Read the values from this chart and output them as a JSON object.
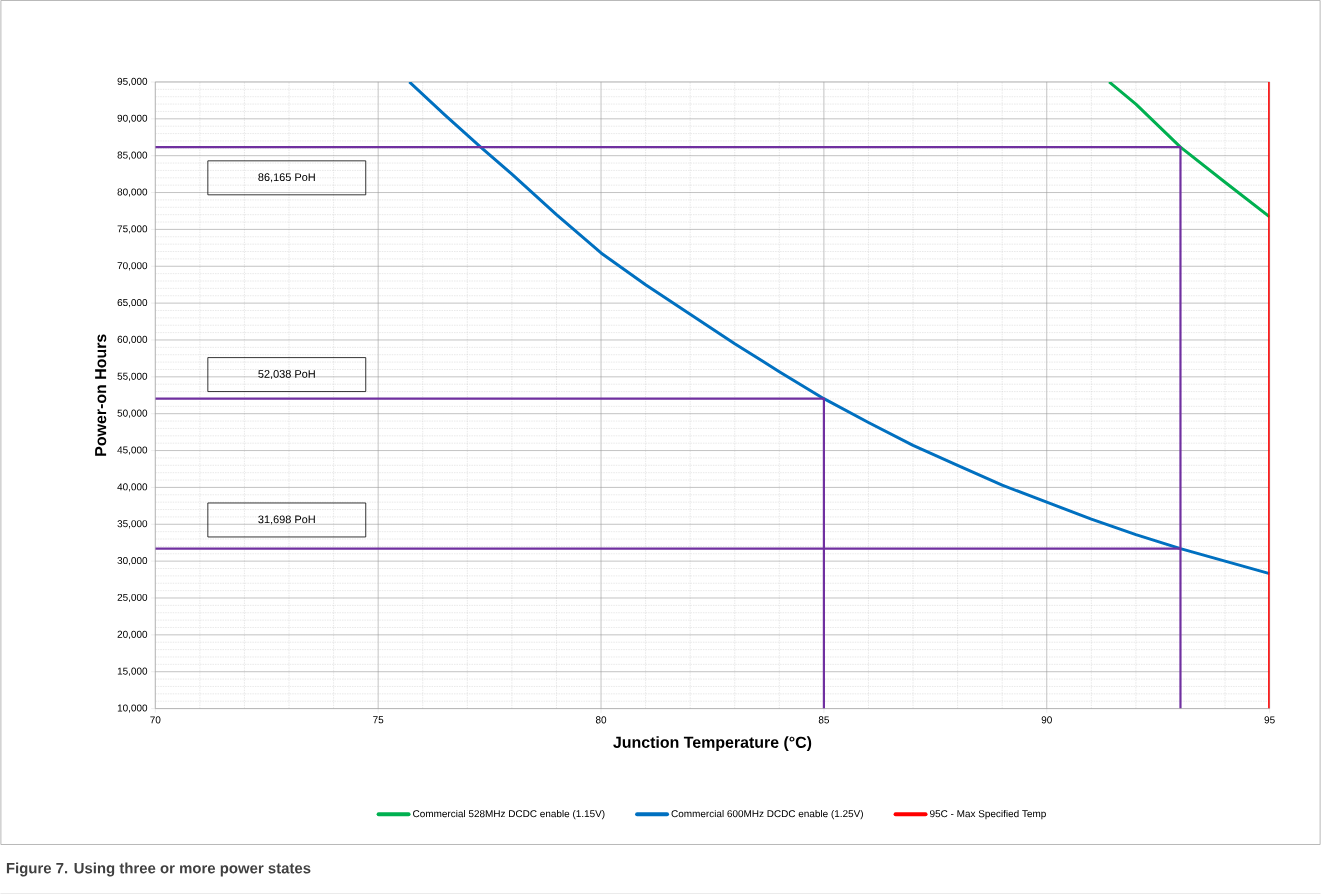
{
  "chart_data": {
    "type": "line",
    "xlabel": "Junction Temperature (°C)",
    "ylabel": "Power-on Hours",
    "xlim": [
      70,
      95
    ],
    "ylim": [
      10000,
      95000
    ],
    "xticks": [
      70,
      75,
      80,
      85,
      90,
      95
    ],
    "yticks": [
      {
        "value": 10000,
        "label": "10,000"
      },
      {
        "value": 15000,
        "label": "15,000"
      },
      {
        "value": 20000,
        "label": "20,000"
      },
      {
        "value": 25000,
        "label": "25,000"
      },
      {
        "value": 30000,
        "label": "30,000"
      },
      {
        "value": 35000,
        "label": "35,000"
      },
      {
        "value": 40000,
        "label": "40,000"
      },
      {
        "value": 45000,
        "label": "45,000"
      },
      {
        "value": 50000,
        "label": "50,000"
      },
      {
        "value": 55000,
        "label": "55,000"
      },
      {
        "value": 60000,
        "label": "60,000"
      },
      {
        "value": 65000,
        "label": "65,000"
      },
      {
        "value": 70000,
        "label": "70,000"
      },
      {
        "value": 75000,
        "label": "75,000"
      },
      {
        "value": 80000,
        "label": "80,000"
      },
      {
        "value": 85000,
        "label": "85,000"
      },
      {
        "value": 90000,
        "label": "90,000"
      },
      {
        "value": 95000,
        "label": "95,000"
      }
    ],
    "grid": true,
    "legend": "bottom",
    "marker": "none",
    "line_style": "solid",
    "series": [
      {
        "name": "Commercial 528MHz DCDC enable (1.15V)",
        "color": "#00b050",
        "x": [
          91.4,
          92,
          93,
          94,
          95
        ],
        "values": [
          95000,
          92000,
          86165,
          81400,
          76700
        ]
      },
      {
        "name": "Commercial 600MHz DCDC enable (1.25V)",
        "color": "#0070c0",
        "x": [
          75.7,
          76.5,
          77.3,
          78,
          79,
          80,
          81,
          82,
          83,
          84,
          85,
          86,
          87,
          88,
          89,
          90,
          91,
          92,
          93,
          94,
          95
        ],
        "values": [
          95000,
          90500,
          86165,
          82500,
          77000,
          71800,
          67500,
          63500,
          59500,
          55700,
          52038,
          48800,
          45700,
          43000,
          40300,
          38000,
          35700,
          33600,
          31698,
          30000,
          28300
        ]
      },
      {
        "name": "95C - Max Specified Temp",
        "color": "#ff0000",
        "x": [
          95,
          95
        ],
        "values": [
          10000,
          95000
        ]
      },
      {
        "color": "#7030a0",
        "x": [
          70,
          93,
          93
        ],
        "values": [
          86165,
          86165,
          10000
        ]
      },
      {
        "color": "#7030a0",
        "x": [
          70,
          85,
          85
        ],
        "values": [
          52038,
          52038,
          10000
        ]
      },
      {
        "color": "#7030a0",
        "x": [
          70,
          93
        ],
        "values": [
          31698,
          31698
        ]
      }
    ],
    "annotations": [
      "86,165 PoH",
      "52,038 PoH",
      "31,698 PoH",
      "Figure 7.  Using three or more power states"
    ]
  }
}
